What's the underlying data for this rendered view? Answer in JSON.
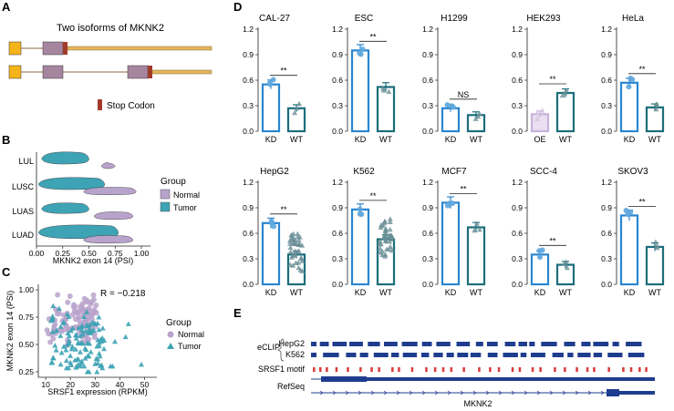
{
  "panel_letters": {
    "a": "A",
    "b": "B",
    "c": "C",
    "d": "D",
    "e": "E"
  },
  "panel_a": {
    "title": "Two isoforms of MKNK2",
    "legend_label": "Stop Codon",
    "colors": {
      "exon_first": "#F4B41A",
      "exon_mid": "#A6869E",
      "stop": "#A23B2A",
      "utr": "#E3B45A",
      "intron": "#8B6A3A"
    }
  },
  "chart_data": [
    {
      "panel": "B",
      "type": "violin",
      "categories": [
        "LUAD",
        "LUAS",
        "LUSC",
        "LUL"
      ],
      "xlabel": "MKNK2 exon 14 (PSI)",
      "xticks": [
        "0.00",
        "0.25",
        "0.50",
        "0.75",
        "1.00"
      ],
      "xlim": [
        0,
        1
      ],
      "legend_title": "Group",
      "legend": [
        {
          "name": "Normal",
          "color": "#B8A3CC"
        },
        {
          "name": "Tumor",
          "color": "#3DA3B5"
        }
      ],
      "series": [
        {
          "name": "Tumor",
          "ranges": [
            [
              0.02,
              0.78
            ],
            [
              0.05,
              0.5
            ],
            [
              0.02,
              0.65
            ],
            [
              0.05,
              0.5
            ]
          ]
        },
        {
          "name": "Normal",
          "ranges": [
            [
              0.45,
              0.92
            ],
            [
              0.55,
              0.92
            ],
            [
              0.45,
              0.95
            ],
            [
              0.62,
              0.75
            ]
          ]
        }
      ]
    },
    {
      "panel": "C",
      "type": "scatter",
      "xlabel": "SRSF1 expression (RPKM)",
      "ylabel": "MKNK2 exon 14 (PSI)",
      "xlim": [
        7,
        55
      ],
      "ylim": [
        0.2,
        1.05
      ],
      "xticks": [
        "10",
        "20",
        "30",
        "40",
        "50"
      ],
      "yticks": [
        "0.25",
        "0.50",
        "0.75",
        "1.00"
      ],
      "annotation": "R = −0.218",
      "legend_title": "Group",
      "legend": [
        {
          "name": "Normal",
          "color": "#B8A3CC",
          "marker": "circle"
        },
        {
          "name": "Tumor",
          "color": "#3DA3B5",
          "marker": "triangle"
        }
      ]
    },
    {
      "panel": "D",
      "type": "bar",
      "ylim": [
        0,
        1.2
      ],
      "yticks": [
        "0.0",
        "0.3",
        "0.6",
        "0.9",
        "1.2"
      ],
      "subplots": [
        {
          "title": "CAL-27",
          "categories": [
            "KD",
            "WT"
          ],
          "values": [
            0.55,
            0.27
          ],
          "sig": "**"
        },
        {
          "title": "ESC",
          "categories": [
            "KD",
            "WT"
          ],
          "values": [
            0.95,
            0.52
          ],
          "sig": "**"
        },
        {
          "title": "H1299",
          "categories": [
            "KD",
            "WT"
          ],
          "values": [
            0.27,
            0.19
          ],
          "sig": "NS"
        },
        {
          "title": "HEK293",
          "categories": [
            "OE",
            "WT"
          ],
          "values": [
            0.2,
            0.45
          ],
          "sig": "**"
        },
        {
          "title": "HeLa",
          "categories": [
            "KD",
            "WT"
          ],
          "values": [
            0.57,
            0.28
          ],
          "sig": "**"
        },
        {
          "title": "HepG2",
          "categories": [
            "KD",
            "WT"
          ],
          "values": [
            0.72,
            0.35
          ],
          "sig": "**"
        },
        {
          "title": "K562",
          "categories": [
            "KD",
            "WT"
          ],
          "values": [
            0.88,
            0.53
          ],
          "sig": "**"
        },
        {
          "title": "MCF7",
          "categories": [
            "KD",
            "WT"
          ],
          "values": [
            0.96,
            0.67
          ],
          "sig": "**"
        },
        {
          "title": "SCC-4",
          "categories": [
            "KD",
            "WT"
          ],
          "values": [
            0.35,
            0.23
          ],
          "sig": "**"
        },
        {
          "title": "SKOV3",
          "categories": [
            "KD",
            "WT"
          ],
          "values": [
            0.81,
            0.44
          ],
          "sig": "**"
        }
      ]
    }
  ],
  "panel_e": {
    "tracks": [
      "HepG2",
      "K562",
      "SRSF1 motif",
      "RefSeq"
    ],
    "group_label": "eCLIP",
    "gene": "MKNK2",
    "colors": {
      "track": "#1F3D8F",
      "motif": "#D93A3A"
    }
  }
}
